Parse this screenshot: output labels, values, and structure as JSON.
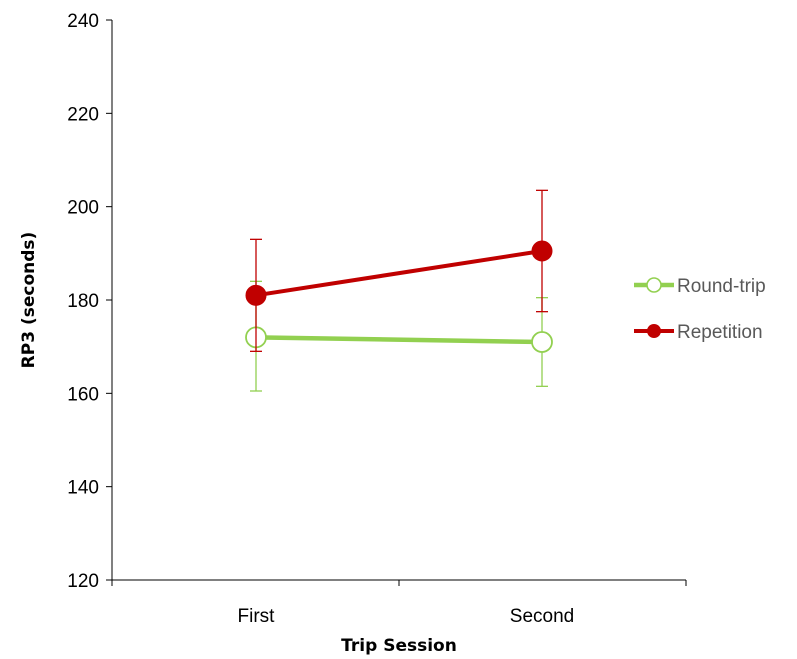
{
  "chart_data": {
    "type": "line",
    "title": "",
    "xlabel": "Trip Session",
    "ylabel": "RP3 (seconds)",
    "categories": [
      "First",
      "Second"
    ],
    "ylim": [
      120,
      240
    ],
    "yticks": [
      120,
      140,
      160,
      180,
      200,
      220,
      240
    ],
    "grid": false,
    "legend_position": "right",
    "series": [
      {
        "name": "Round-trip",
        "values": [
          172,
          171
        ],
        "error_low": [
          160.5,
          161.5
        ],
        "error_high": [
          184,
          180.5
        ],
        "color": "#92d050",
        "marker": "open-circle"
      },
      {
        "name": "Repetition",
        "values": [
          181,
          190.5
        ],
        "error_low": [
          169,
          177.5
        ],
        "error_high": [
          193,
          203.5
        ],
        "color": "#c00000",
        "marker": "filled-circle"
      }
    ]
  }
}
